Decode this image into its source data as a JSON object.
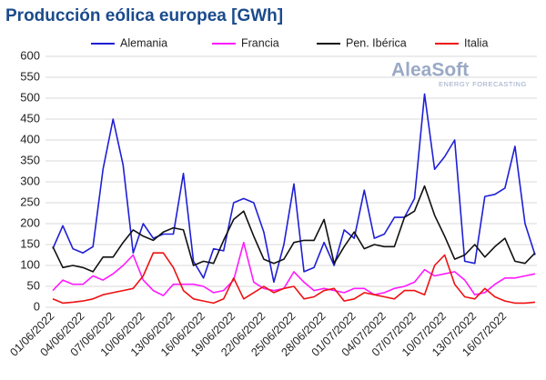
{
  "chart_data": {
    "type": "line",
    "title": "Producción eólica europea [GWh]",
    "categories": [
      "01/06/2022",
      null,
      null,
      "04/06/2022",
      null,
      null,
      "07/06/2022",
      null,
      null,
      "10/06/2022",
      null,
      null,
      "13/06/2022",
      null,
      null,
      "16/06/2022",
      null,
      null,
      "19/06/2022",
      null,
      null,
      "22/06/2022",
      null,
      null,
      "25/06/2022",
      null,
      null,
      "28/06/2022",
      null,
      null,
      "01/07/2022",
      null,
      null,
      "04/07/2022",
      null,
      null,
      "07/07/2022",
      null,
      null,
      "10/07/2022",
      null,
      null,
      "13/07/2022",
      null,
      null,
      "16/07/2022",
      null,
      null,
      null
    ],
    "series": [
      {
        "name": "Alemania",
        "color": "#1f1fd6",
        "values": [
          140,
          195,
          140,
          130,
          145,
          330,
          450,
          340,
          130,
          200,
          165,
          175,
          175,
          320,
          110,
          70,
          140,
          135,
          250,
          260,
          250,
          180,
          60,
          150,
          295,
          85,
          95,
          155,
          100,
          185,
          165,
          280,
          165,
          175,
          215,
          215,
          260,
          510,
          330,
          360,
          400,
          110,
          105,
          265,
          270,
          285,
          385,
          200,
          125
        ]
      },
      {
        "name": "Francia",
        "color": "#ff1aff",
        "values": [
          40,
          65,
          55,
          55,
          75,
          65,
          80,
          100,
          125,
          65,
          40,
          28,
          55,
          55,
          55,
          50,
          35,
          40,
          65,
          155,
          60,
          45,
          40,
          45,
          85,
          60,
          40,
          45,
          40,
          35,
          45,
          45,
          30,
          35,
          45,
          50,
          60,
          90,
          75,
          80,
          85,
          65,
          30,
          35,
          55,
          70,
          70,
          75,
          80
        ]
      },
      {
        "name": "Pen. Ibérica",
        "color": "#111111",
        "values": [
          145,
          95,
          100,
          95,
          85,
          120,
          120,
          155,
          185,
          170,
          160,
          180,
          190,
          185,
          100,
          110,
          105,
          160,
          210,
          230,
          170,
          115,
          105,
          115,
          155,
          160,
          160,
          210,
          105,
          145,
          180,
          140,
          150,
          145,
          145,
          215,
          230,
          290,
          220,
          170,
          115,
          125,
          150,
          120,
          145,
          165,
          110,
          105,
          130
        ]
      },
      {
        "name": "Italia",
        "color": "#ee1111",
        "values": [
          20,
          10,
          12,
          15,
          20,
          30,
          35,
          40,
          45,
          75,
          130,
          130,
          95,
          40,
          20,
          15,
          10,
          20,
          70,
          20,
          35,
          50,
          35,
          45,
          50,
          20,
          25,
          40,
          45,
          15,
          20,
          35,
          30,
          25,
          20,
          40,
          40,
          30,
          100,
          125,
          55,
          25,
          20,
          45,
          25,
          15,
          10,
          10,
          12
        ]
      }
    ],
    "ylim": [
      0,
      600
    ],
    "yticks": [
      0,
      50,
      100,
      150,
      200,
      250,
      300,
      350,
      400,
      450,
      500,
      550,
      600
    ],
    "grid": true,
    "legend": "top"
  },
  "logo": {
    "name": "AleaSoft",
    "tagline": "ENERGY FORECASTING"
  }
}
